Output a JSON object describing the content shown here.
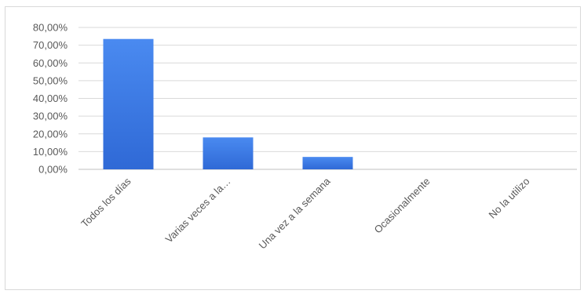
{
  "chart_data": {
    "type": "bar",
    "categories": [
      "Todos los días",
      "Varias veces a la…",
      "Una vez a la semana",
      "Ocasionalmente",
      "No la utilizo"
    ],
    "series": [
      {
        "values": [
          73.5,
          18.0,
          7.0,
          0.0,
          0.0
        ]
      }
    ],
    "ylim": [
      0,
      80
    ],
    "yticks": [
      "0,00%",
      "10,00%",
      "20,00%",
      "30,00%",
      "40,00%",
      "50,00%",
      "60,00%",
      "70,00%",
      "80,00%"
    ],
    "grid": true,
    "legend": "none",
    "colors": {
      "bar": "#3d7ee8",
      "bar_dark": "#2f69d6",
      "grid": "#d9d9d9",
      "axis_text": "#595959"
    }
  }
}
